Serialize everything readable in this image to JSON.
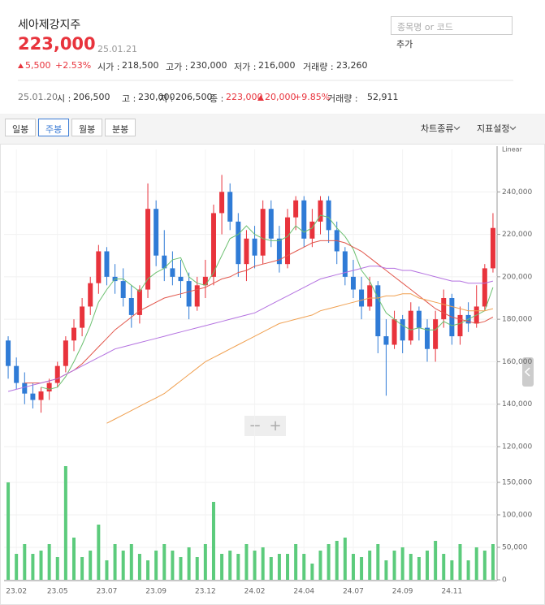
{
  "header": {
    "name": "세아제강지주",
    "price": "223,000",
    "date": "25.01.21",
    "change": "5,500",
    "change_pct": "+2.53%",
    "stats": [
      {
        "label": "시가 :",
        "value": "218,500"
      },
      {
        "label": "고가 :",
        "value": "230,000"
      },
      {
        "label": "저가 :",
        "value": "216,000"
      },
      {
        "label": "거래량 :",
        "value": "23,260"
      }
    ],
    "search_placeholder": "종목명 or 코드",
    "add": "추가"
  },
  "prev": {
    "date": "25.01.20",
    "stats": [
      {
        "label": "시 :",
        "value": "206,500"
      },
      {
        "label": "고 :",
        "value": "230,000"
      },
      {
        "label": "저 :",
        "value": "206,500"
      },
      {
        "label": "종 :",
        "value": "223,000"
      }
    ],
    "change": "20,000",
    "change_pct": "+9.85%",
    "volume_label": "거래량 :",
    "volume": "52,911"
  },
  "toolbar": {
    "tabs": [
      "일봉",
      "주봉",
      "월봉",
      "분봉"
    ],
    "chart_type": "차트종류",
    "indicator": "지표설정"
  },
  "zoom": [
    "−",
    "+"
  ],
  "chart_data": {
    "type": "candlestick",
    "scale_label": "Linear",
    "categories": [
      null,
      "23.02",
      null,
      null,
      null,
      null,
      "23.05",
      null,
      null,
      null,
      null,
      null,
      "23.07",
      null,
      null,
      null,
      null,
      null,
      "23.09",
      null,
      null,
      null,
      null,
      null,
      "23.12",
      null,
      null,
      null,
      null,
      null,
      "24.02",
      null,
      null,
      null,
      null,
      null,
      "24.04",
      null,
      null,
      null,
      null,
      null,
      "24.07",
      null,
      null,
      null,
      null,
      null,
      "24.09",
      null,
      null,
      null,
      null,
      null,
      "24.11",
      null,
      null,
      null,
      null,
      null
    ],
    "open": [
      170000,
      158000,
      150000,
      145000,
      142000,
      146000,
      150000,
      158000,
      170000,
      176000,
      186000,
      197000,
      212000,
      200000,
      198000,
      190000,
      182000,
      194000,
      232000,
      210000,
      204000,
      200000,
      198000,
      186000,
      196000,
      200000,
      230000,
      240000,
      226000,
      206000,
      218000,
      210000,
      232000,
      218000,
      206000,
      228000,
      236000,
      218000,
      226000,
      236000,
      222000,
      212000,
      200000,
      194000,
      186000,
      196000,
      172000,
      168000,
      180000,
      170000,
      184000,
      176000,
      166000,
      180000,
      190000,
      172000,
      182000,
      178000,
      186000,
      204000
    ],
    "high": [
      172000,
      162000,
      155000,
      150000,
      148000,
      152000,
      160000,
      172000,
      180000,
      190000,
      200000,
      215000,
      214000,
      206000,
      204000,
      196000,
      196000,
      244000,
      236000,
      222000,
      212000,
      208000,
      202000,
      200000,
      208000,
      234000,
      248000,
      244000,
      230000,
      222000,
      224000,
      236000,
      236000,
      224000,
      232000,
      238000,
      238000,
      232000,
      238000,
      238000,
      226000,
      214000,
      208000,
      200000,
      200000,
      198000,
      180000,
      184000,
      182000,
      188000,
      186000,
      180000,
      184000,
      194000,
      192000,
      186000,
      188000,
      196000,
      206000,
      230000
    ],
    "low": [
      152000,
      147000,
      140000,
      138000,
      136000,
      142000,
      148000,
      155000,
      165000,
      172000,
      182000,
      192000,
      196000,
      192000,
      186000,
      176000,
      178000,
      190000,
      205000,
      198000,
      196000,
      190000,
      180000,
      184000,
      190000,
      196000,
      220000,
      222000,
      200000,
      198000,
      204000,
      206000,
      214000,
      202000,
      204000,
      222000,
      214000,
      214000,
      220000,
      216000,
      206000,
      196000,
      190000,
      180000,
      184000,
      164000,
      144000,
      166000,
      164000,
      168000,
      170000,
      160000,
      160000,
      176000,
      168000,
      168000,
      174000,
      176000,
      184000,
      202000
    ],
    "close": [
      158000,
      150000,
      145000,
      142000,
      146000,
      150000,
      158000,
      170000,
      176000,
      186000,
      197000,
      212000,
      200000,
      198000,
      190000,
      182000,
      194000,
      232000,
      210000,
      204000,
      200000,
      198000,
      186000,
      196000,
      200000,
      230000,
      240000,
      226000,
      206000,
      218000,
      210000,
      232000,
      218000,
      206000,
      228000,
      236000,
      218000,
      226000,
      236000,
      222000,
      212000,
      200000,
      194000,
      186000,
      196000,
      172000,
      168000,
      180000,
      170000,
      184000,
      176000,
      166000,
      180000,
      190000,
      172000,
      182000,
      178000,
      186000,
      204000,
      223000
    ],
    "up_color": "#e8333c",
    "down_color": "#2f7bd6",
    "lines": [
      {
        "color": "#6cc070",
        "values": [
          null,
          null,
          null,
          null,
          148000,
          147000,
          148000,
          153000,
          160000,
          168000,
          177000,
          188000,
          194000,
          199000,
          199000,
          196000,
          193000,
          199000,
          202000,
          204000,
          208000,
          209000,
          200000,
          197000,
          196000,
          202000,
          210000,
          218000,
          220000,
          224000,
          220000,
          218000,
          217000,
          217000,
          219000,
          224000,
          221000,
          223000,
          229000,
          228000,
          223000,
          219000,
          213000,
          203000,
          198000,
          190000,
          183000,
          180000,
          177000,
          175000,
          176000,
          175000,
          175000,
          179000,
          177000,
          178000,
          180000,
          182000,
          184000,
          195000
        ]
      },
      {
        "color": "#e2574c",
        "values": [
          null,
          null,
          150000,
          150000,
          150000,
          151000,
          152000,
          154000,
          156000,
          159000,
          163000,
          167000,
          171000,
          175000,
          178000,
          181000,
          184000,
          186000,
          188000,
          190000,
          191000,
          192000,
          193000,
          194000,
          195000,
          197000,
          199000,
          200000,
          202000,
          203000,
          205000,
          206000,
          207000,
          208000,
          210000,
          212000,
          214000,
          216000,
          217000,
          217000,
          217000,
          216000,
          214000,
          212000,
          209000,
          206000,
          203000,
          200000,
          197000,
          194000,
          191000,
          188000,
          185000,
          183000,
          181000,
          180000,
          179000,
          178000,
          179000,
          181000
        ]
      },
      {
        "color": "#b472e0",
        "values": [
          146000,
          147000,
          148000,
          149000,
          150000,
          151000,
          152000,
          154000,
          156000,
          158000,
          160000,
          162000,
          164000,
          166000,
          167000,
          168000,
          169000,
          170000,
          171000,
          172000,
          173000,
          174000,
          175000,
          176000,
          177000,
          178000,
          179000,
          180000,
          181000,
          182000,
          183000,
          185000,
          187000,
          189000,
          191000,
          193000,
          195000,
          197000,
          199000,
          200000,
          201000,
          202000,
          203000,
          204000,
          205000,
          205000,
          204000,
          204000,
          203000,
          203000,
          202000,
          201000,
          200000,
          199000,
          198000,
          198000,
          197000,
          197000,
          197000,
          198000
        ]
      },
      {
        "color": "#f0a050",
        "values": [
          null,
          null,
          null,
          null,
          null,
          null,
          null,
          null,
          null,
          null,
          null,
          null,
          131000,
          133000,
          135000,
          137000,
          139000,
          141000,
          143000,
          145000,
          148000,
          151000,
          154000,
          157000,
          160000,
          162000,
          164000,
          166000,
          168000,
          170000,
          172000,
          174000,
          176000,
          178000,
          179000,
          180000,
          181000,
          182000,
          184000,
          185000,
          186000,
          187000,
          188000,
          189000,
          190000,
          190000,
          191000,
          191000,
          192000,
          192000,
          190000,
          189000,
          188000,
          187000,
          186000,
          185000,
          184000,
          184000,
          184000,
          185000
        ]
      }
    ],
    "ylim": [
      120000,
      260000
    ],
    "yticks": [
      {
        "value": 120000,
        "label": "120,000"
      },
      {
        "value": 140000,
        "label": "140,000"
      },
      {
        "value": 160000,
        "label": "160,000"
      },
      {
        "value": 180000,
        "label": "180,000"
      },
      {
        "value": 200000,
        "label": "200,000"
      },
      {
        "value": 220000,
        "label": "220,000"
      },
      {
        "value": 240000,
        "label": "240,000"
      }
    ],
    "volume": {
      "color": "#5ccb7c",
      "values": [
        150000,
        40000,
        55000,
        40000,
        45000,
        55000,
        35000,
        175000,
        65000,
        35000,
        45000,
        85000,
        30000,
        55000,
        45000,
        55000,
        40000,
        30000,
        45000,
        55000,
        45000,
        35000,
        50000,
        35000,
        55000,
        120000,
        40000,
        45000,
        40000,
        55000,
        45000,
        50000,
        35000,
        40000,
        40000,
        55000,
        40000,
        25000,
        45000,
        55000,
        60000,
        65000,
        40000,
        35000,
        45000,
        55000,
        30000,
        45000,
        50000,
        40000,
        35000,
        45000,
        60000,
        40000,
        30000,
        55000,
        30000,
        50000,
        45000,
        55000
      ],
      "ylim": [
        0,
        200000
      ],
      "yticks": [
        0,
        {
          "value": 50000,
          "label": "50,000"
        },
        {
          "value": 100000,
          "label": "100,000"
        },
        {
          "value": 150000,
          "label": "150,000"
        }
      ]
    }
  }
}
